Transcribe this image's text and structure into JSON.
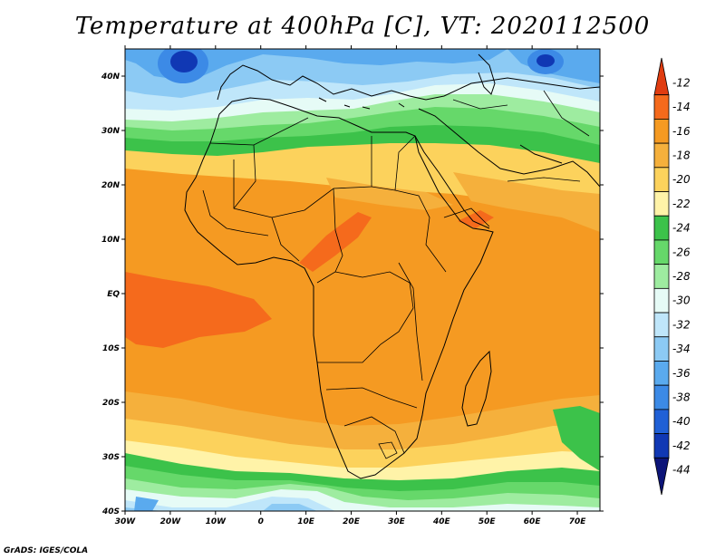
{
  "title": "Temperature at 400hPa [C], VT: 2020112500",
  "credit": "GrADS: IGES/COLA",
  "map": {
    "lon_range": [
      -30,
      75
    ],
    "lat_range": [
      -40,
      45
    ],
    "lat_ticks": [
      {
        "value": 40,
        "label": "40N"
      },
      {
        "value": 30,
        "label": "30N"
      },
      {
        "value": 20,
        "label": "20N"
      },
      {
        "value": 10,
        "label": "10N"
      },
      {
        "value": 0,
        "label": "EQ"
      },
      {
        "value": -10,
        "label": "10S"
      },
      {
        "value": -20,
        "label": "20S"
      },
      {
        "value": -30,
        "label": "30S"
      },
      {
        "value": -40,
        "label": "40S"
      }
    ],
    "lon_ticks": [
      {
        "value": -30,
        "label": "30W"
      },
      {
        "value": -20,
        "label": "20W"
      },
      {
        "value": -10,
        "label": "10W"
      },
      {
        "value": 0,
        "label": "0"
      },
      {
        "value": 10,
        "label": "10E"
      },
      {
        "value": 20,
        "label": "20E"
      },
      {
        "value": 30,
        "label": "30E"
      },
      {
        "value": 40,
        "label": "40E"
      },
      {
        "value": 50,
        "label": "50E"
      },
      {
        "value": 60,
        "label": "60E"
      },
      {
        "value": 70,
        "label": "70E"
      }
    ]
  },
  "colorbar": {
    "levels": [
      "-12",
      "-14",
      "-16",
      "-18",
      "-20",
      "-22",
      "-24",
      "-26",
      "-28",
      "-30",
      "-32",
      "-34",
      "-36",
      "-38",
      "-40",
      "-42",
      "-44"
    ],
    "colors": [
      "#e03c10",
      "#f56a1c",
      "#f59a22",
      "#f5b03c",
      "#fcd25c",
      "#fff3a8",
      "#3cc24a",
      "#66d86a",
      "#9eeca0",
      "#e6fbf6",
      "#bfe6fa",
      "#8ccaf4",
      "#5aaaee",
      "#3c8ae6",
      "#2060d6",
      "#1038b4",
      "#0c1478"
    ]
  }
}
